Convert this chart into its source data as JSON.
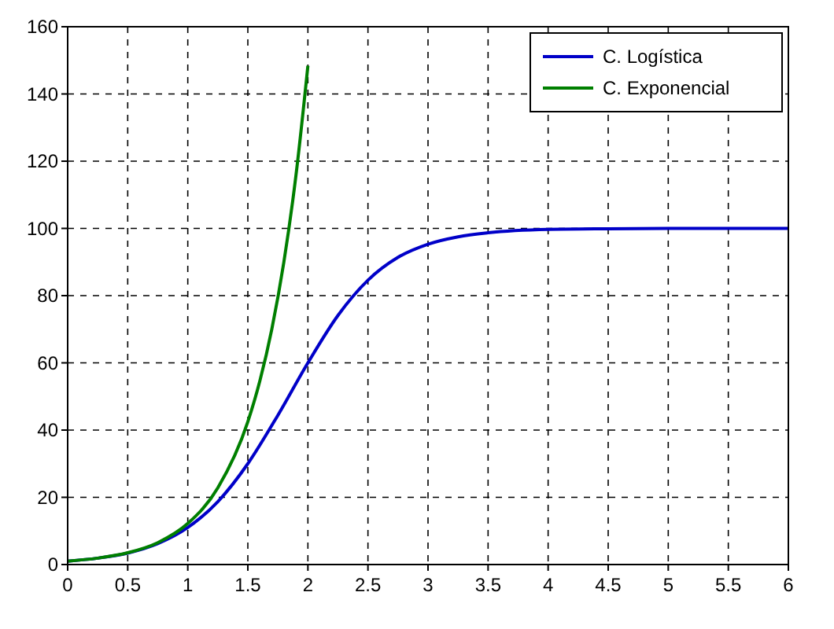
{
  "chart_data": {
    "type": "line",
    "xlim": [
      0,
      6
    ],
    "ylim": [
      0,
      160
    ],
    "xticks": [
      0,
      0.5,
      1,
      1.5,
      2,
      2.5,
      3,
      3.5,
      4,
      4.5,
      5,
      5.5,
      6
    ],
    "yticks": [
      0,
      20,
      40,
      60,
      80,
      100,
      120,
      140,
      160
    ],
    "grid": true,
    "legend": "top right",
    "line_style": "solid",
    "series": [
      {
        "name": "C. Logística",
        "color": "#0000c8",
        "x": [
          0,
          0.25,
          0.5,
          0.75,
          1,
          1.25,
          1.5,
          1.75,
          2,
          2.25,
          2.5,
          2.75,
          3,
          3.25,
          3.5,
          4,
          4.5,
          5,
          5.5,
          6
        ],
        "values": [
          1,
          1.9,
          3.4,
          6.2,
          11,
          18.7,
          30,
          44.4,
          60,
          74.1,
          84.6,
          91.4,
          95.3,
          97.5,
          98.7,
          99.7,
          99.9,
          100,
          100,
          100
        ]
      },
      {
        "name": "C. Exponencial",
        "color": "#007f00",
        "x": [
          0,
          0.25,
          0.5,
          0.75,
          1,
          1.25,
          1.5,
          1.6,
          1.7,
          1.8,
          1.9,
          2
        ],
        "values": [
          1,
          1.9,
          3.5,
          6.5,
          12.2,
          22.8,
          42.5,
          54.6,
          70.1,
          90,
          115.6,
          148.4
        ]
      }
    ]
  }
}
